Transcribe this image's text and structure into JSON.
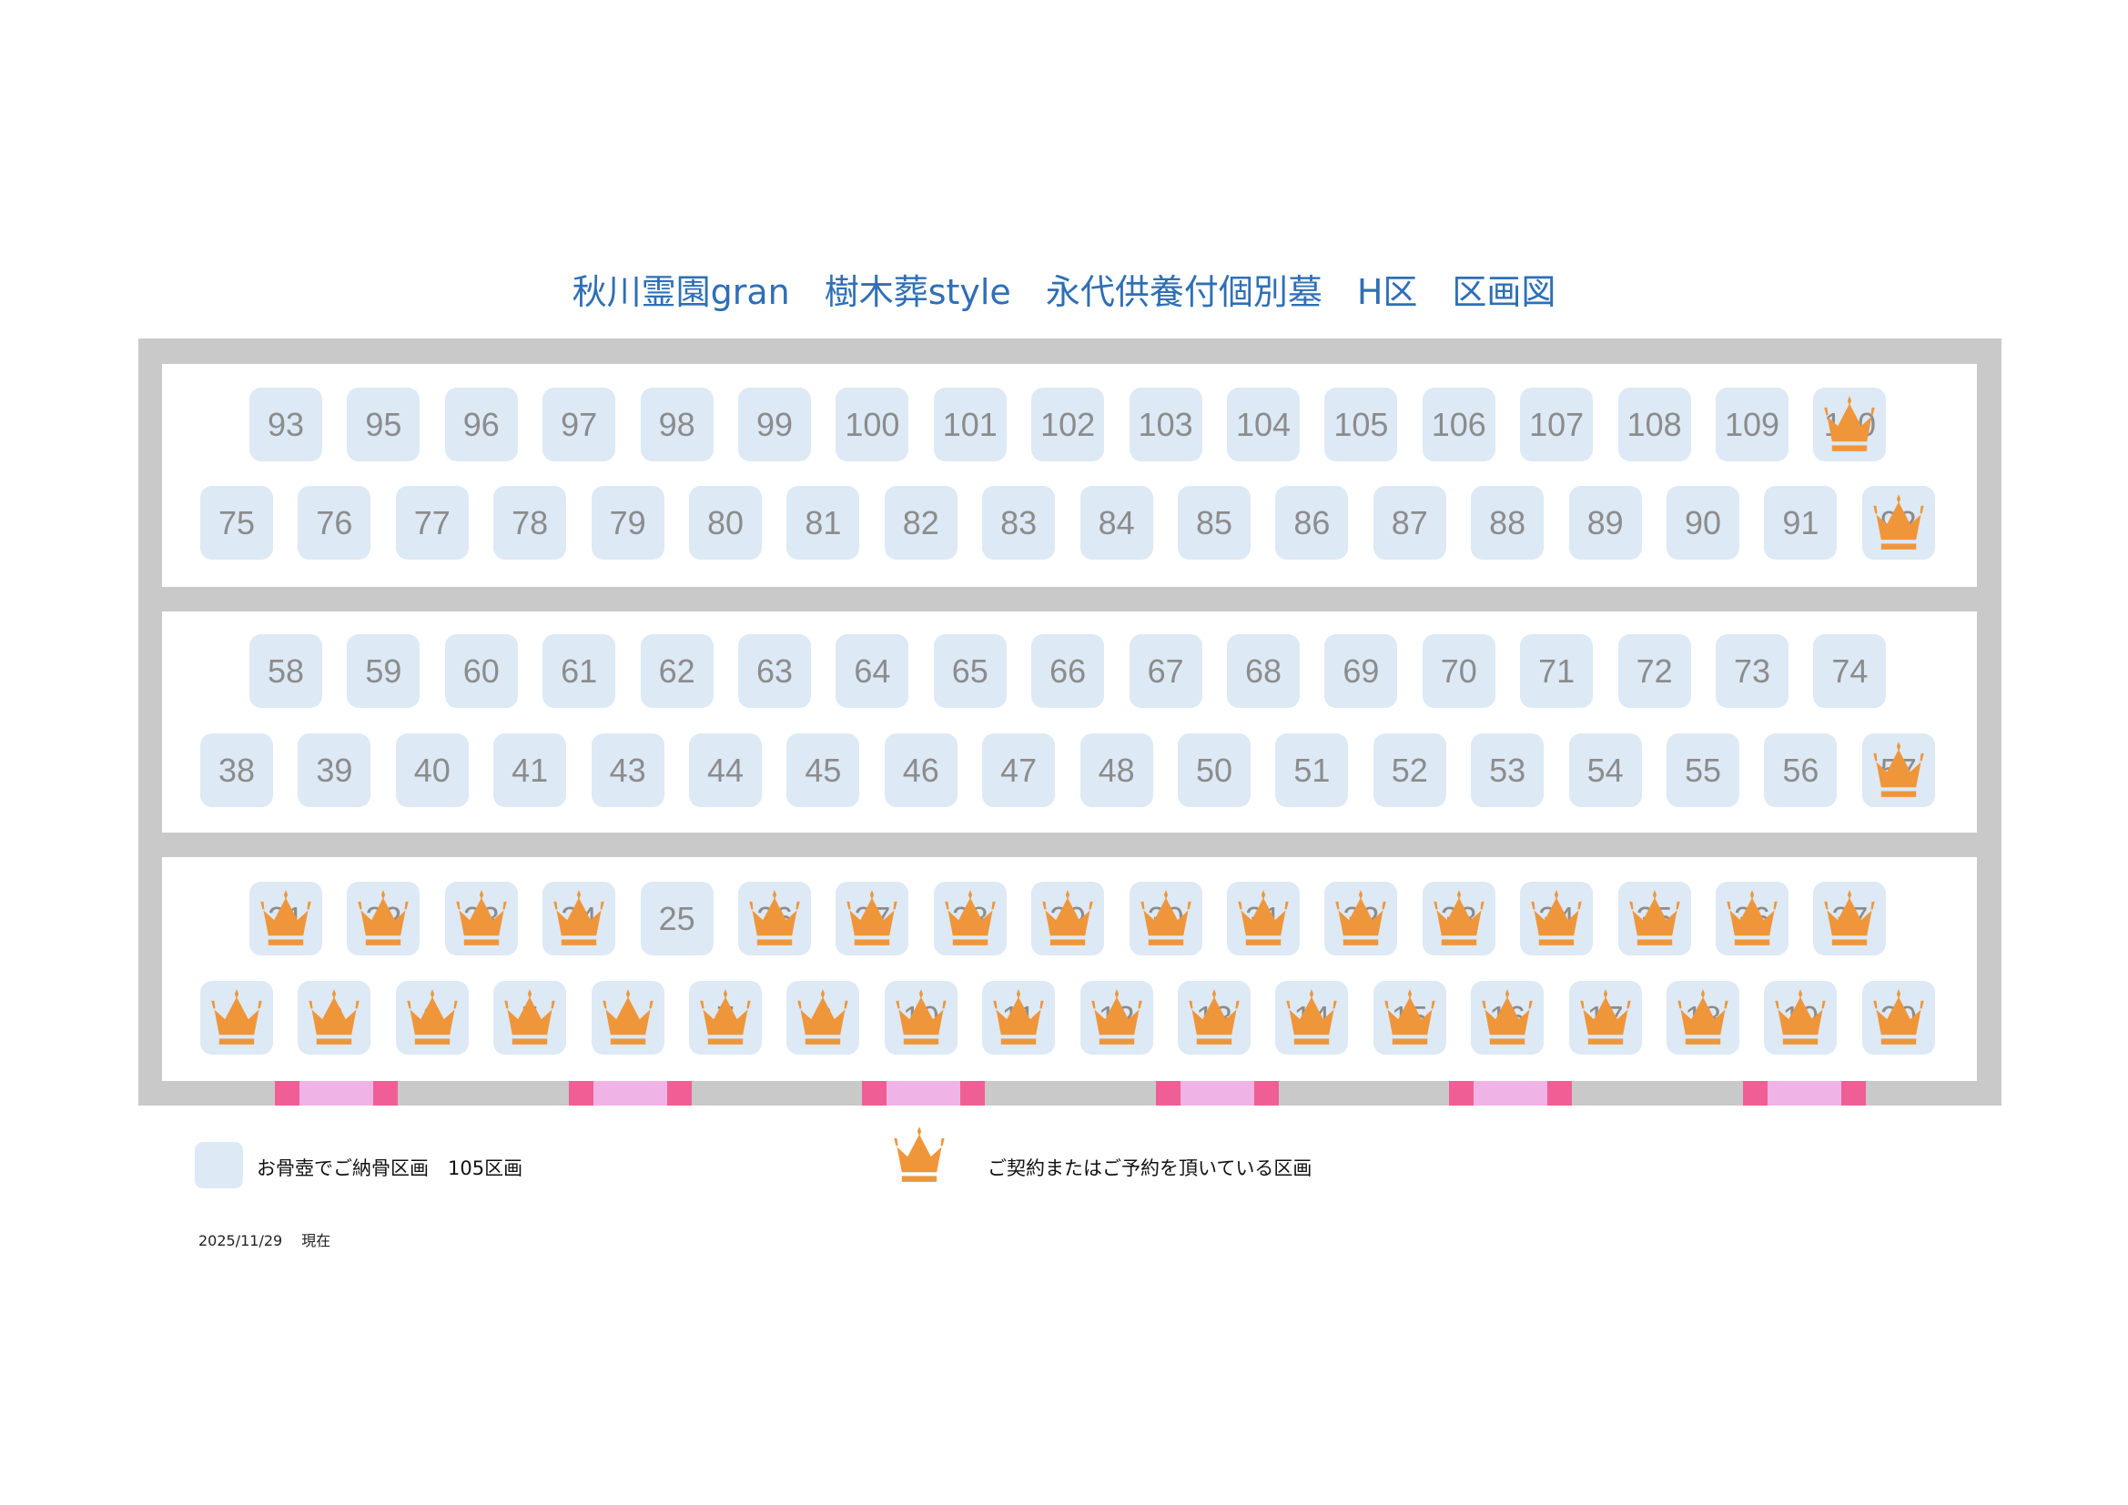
{
  "title": "秋川霊園gran　樹木葬style　永代供養付個別墓　H区　区画図",
  "colors": {
    "cell": "#dde9f5",
    "crown": "#f0963a",
    "frame": "#c9c9c9",
    "gate_dark": "#ef5f95",
    "gate_light": "#efb3e6",
    "title": "#2f6fb5"
  },
  "rows": [
    {
      "cells": [
        {
          "n": "93"
        },
        {
          "n": "95"
        },
        {
          "n": "96"
        },
        {
          "n": "97"
        },
        {
          "n": "98"
        },
        {
          "n": "99"
        },
        {
          "n": "100"
        },
        {
          "n": "101"
        },
        {
          "n": "102"
        },
        {
          "n": "103"
        },
        {
          "n": "104"
        },
        {
          "n": "105"
        },
        {
          "n": "106"
        },
        {
          "n": "107"
        },
        {
          "n": "108"
        },
        {
          "n": "109"
        },
        {
          "n": "110",
          "reserved": true
        }
      ]
    },
    {
      "cells": [
        {
          "n": "75"
        },
        {
          "n": "76"
        },
        {
          "n": "77"
        },
        {
          "n": "78"
        },
        {
          "n": "79"
        },
        {
          "n": "80"
        },
        {
          "n": "81"
        },
        {
          "n": "82"
        },
        {
          "n": "83"
        },
        {
          "n": "84"
        },
        {
          "n": "85"
        },
        {
          "n": "86"
        },
        {
          "n": "87"
        },
        {
          "n": "88"
        },
        {
          "n": "89"
        },
        {
          "n": "90"
        },
        {
          "n": "91"
        },
        {
          "n": "92",
          "reserved": true
        }
      ]
    },
    {
      "cells": [
        {
          "n": "58"
        },
        {
          "n": "59"
        },
        {
          "n": "60"
        },
        {
          "n": "61"
        },
        {
          "n": "62"
        },
        {
          "n": "63"
        },
        {
          "n": "64"
        },
        {
          "n": "65"
        },
        {
          "n": "66"
        },
        {
          "n": "67"
        },
        {
          "n": "68"
        },
        {
          "n": "69"
        },
        {
          "n": "70"
        },
        {
          "n": "71"
        },
        {
          "n": "72"
        },
        {
          "n": "73"
        },
        {
          "n": "74"
        }
      ]
    },
    {
      "cells": [
        {
          "n": "38"
        },
        {
          "n": "39"
        },
        {
          "n": "40"
        },
        {
          "n": "41"
        },
        {
          "n": "43"
        },
        {
          "n": "44"
        },
        {
          "n": "45"
        },
        {
          "n": "46"
        },
        {
          "n": "47"
        },
        {
          "n": "48"
        },
        {
          "n": "50"
        },
        {
          "n": "51"
        },
        {
          "n": "52"
        },
        {
          "n": "53"
        },
        {
          "n": "54"
        },
        {
          "n": "55"
        },
        {
          "n": "56"
        },
        {
          "n": "57",
          "reserved": true
        }
      ]
    },
    {
      "cells": [
        {
          "n": "21",
          "reserved": true
        },
        {
          "n": "22",
          "reserved": true
        },
        {
          "n": "23",
          "reserved": true
        },
        {
          "n": "24",
          "reserved": true
        },
        {
          "n": "25"
        },
        {
          "n": "26",
          "reserved": true
        },
        {
          "n": "27",
          "reserved": true
        },
        {
          "n": "28",
          "reserved": true
        },
        {
          "n": "29",
          "reserved": true
        },
        {
          "n": "30",
          "reserved": true
        },
        {
          "n": "31",
          "reserved": true
        },
        {
          "n": "32",
          "reserved": true
        },
        {
          "n": "33",
          "reserved": true
        },
        {
          "n": "34",
          "reserved": true
        },
        {
          "n": "35",
          "reserved": true
        },
        {
          "n": "36",
          "reserved": true
        },
        {
          "n": "37",
          "reserved": true
        }
      ]
    },
    {
      "cells": [
        {
          "n": "1",
          "reserved": true
        },
        {
          "n": "2",
          "reserved": true
        },
        {
          "n": "3",
          "reserved": true
        },
        {
          "n": "5",
          "reserved": true
        },
        {
          "n": "6",
          "reserved": true
        },
        {
          "n": "7",
          "reserved": true
        },
        {
          "n": "8",
          "reserved": true
        },
        {
          "n": "10",
          "reserved": true
        },
        {
          "n": "11",
          "reserved": true
        },
        {
          "n": "12",
          "reserved": true
        },
        {
          "n": "13",
          "reserved": true
        },
        {
          "n": "14",
          "reserved": true
        },
        {
          "n": "15",
          "reserved": true
        },
        {
          "n": "16",
          "reserved": true
        },
        {
          "n": "17",
          "reserved": true
        },
        {
          "n": "18",
          "reserved": true
        },
        {
          "n": "19",
          "reserved": true
        },
        {
          "n": "20",
          "reserved": true
        }
      ]
    }
  ],
  "legend": {
    "available": "お骨壺でご納骨区画　105区画",
    "reserved": "ご契約またはご予約を頂いている区画",
    "reserved_icon": "crown-icon"
  },
  "date": "2025/11/29　 現在"
}
